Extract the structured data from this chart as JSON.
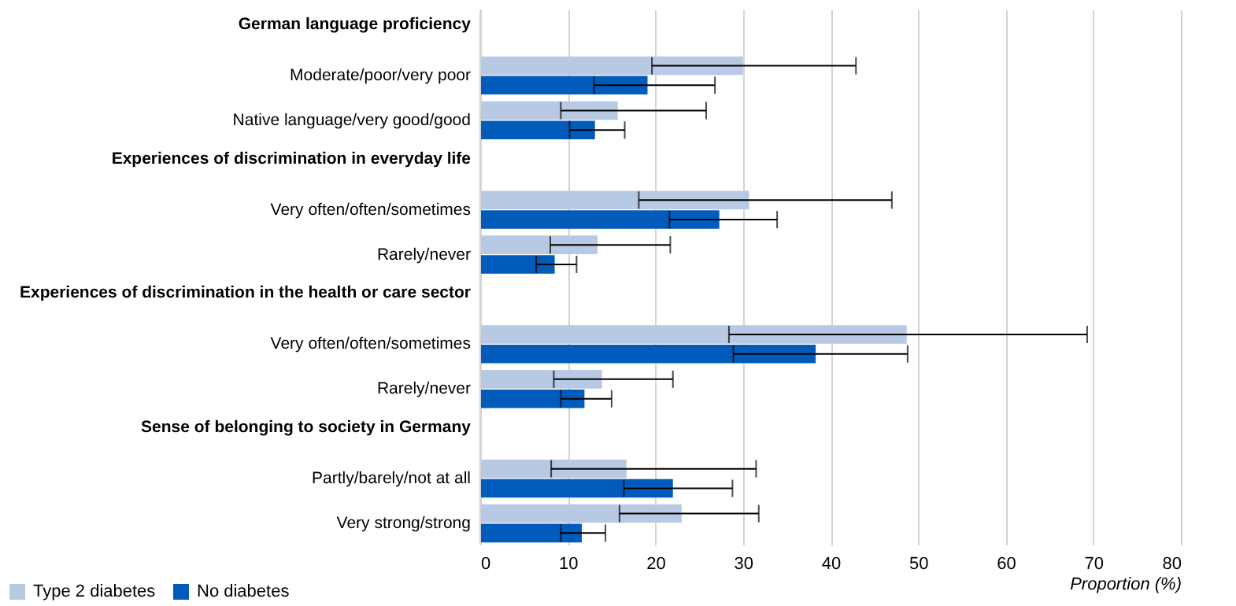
{
  "chart_data": {
    "type": "bar",
    "orientation": "horizontal",
    "categories": [
      "German language proficiency",
      "Moderate/poor/very poor",
      "Native language/very good/good",
      "Experiences of discrimination in everyday life",
      "Very often/often/sometimes",
      "Rarely/never",
      "Experiences of discrimination in the health or care sector",
      "Very often/often/sometimes",
      "Rarely/never",
      "Sense of belonging to society in Germany",
      "Partly/barely/not at all",
      "Very strong/strong"
    ],
    "series": [
      {
        "name": "Type 2 diabetes",
        "color": "#b8c9e3",
        "values": [
          null,
          30.0,
          15.7,
          null,
          30.7,
          13.4,
          null,
          48.7,
          13.9,
          null,
          16.7,
          23.0
        ],
        "errors": [
          null,
          [
            19.6,
            42.9
          ],
          [
            9.2,
            25.8
          ],
          null,
          [
            18.1,
            47.0
          ],
          [
            8.0,
            21.7
          ],
          null,
          [
            28.4,
            69.3
          ],
          [
            8.4,
            22.0
          ],
          null,
          [
            8.1,
            31.5
          ],
          [
            15.9,
            31.8
          ]
        ]
      },
      {
        "name": "No diabetes",
        "color": "#005bbb",
        "values": [
          null,
          19.1,
          13.1,
          null,
          27.3,
          8.5,
          null,
          38.3,
          11.9,
          null,
          22.0,
          11.6
        ],
        "errors": [
          null,
          [
            13.0,
            26.8
          ],
          [
            10.2,
            16.5
          ],
          null,
          [
            21.6,
            33.9
          ],
          [
            6.4,
            11.0
          ],
          null,
          [
            28.9,
            48.8
          ],
          [
            9.2,
            15.0
          ],
          null,
          [
            16.4,
            28.8
          ],
          [
            9.2,
            14.3
          ]
        ]
      }
    ],
    "xlabel": "Proportion (%)",
    "xlim": [
      0,
      80
    ],
    "xticks": [
      0,
      10,
      20,
      30,
      40,
      50,
      60,
      70,
      80
    ],
    "grid": "x",
    "legend": "bottom left"
  }
}
